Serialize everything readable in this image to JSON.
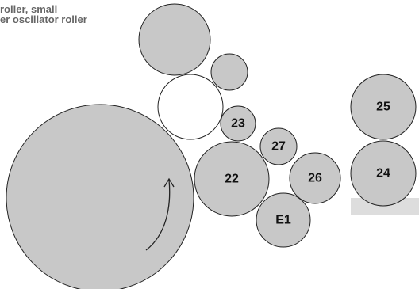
{
  "header": {
    "line1": "roller, small",
    "line2": "er oscillator roller"
  },
  "rollers": [
    {
      "id": "22",
      "label": "22"
    },
    {
      "id": "23",
      "label": "23"
    },
    {
      "id": "24",
      "label": "24"
    },
    {
      "id": "25",
      "label": "25"
    },
    {
      "id": "26",
      "label": "26"
    },
    {
      "id": "27",
      "label": "27"
    },
    {
      "id": "E1",
      "label": "E1"
    }
  ],
  "colors": {
    "roller_fill": "#c8c8c8",
    "roller_stroke": "#222222",
    "open_roller_fill": "#ffffff",
    "stand_fill": "#dddddd",
    "text": "#111111",
    "header_text": "#666666"
  }
}
